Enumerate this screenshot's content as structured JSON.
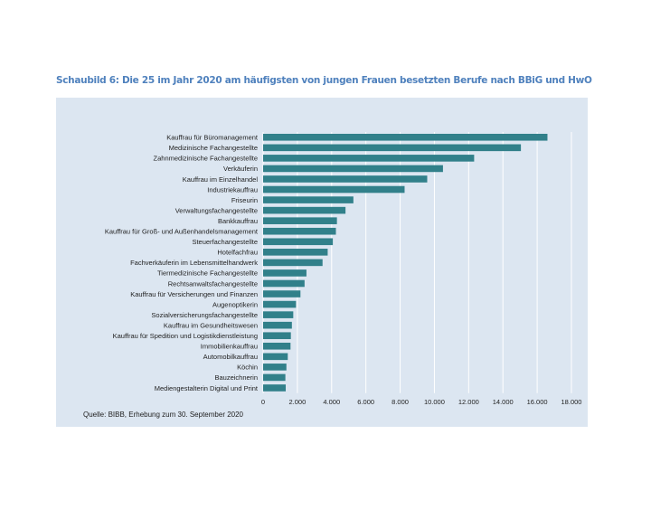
{
  "chart_data": {
    "type": "bar",
    "orientation": "horizontal",
    "title": "Schaubild 6: Die 25 im Jahr 2020 am häufigsten von jungen Frauen besetzten Berufe nach BBiG und HwO",
    "source": "Quelle: BIBB, Erhebung zum 30. September 2020",
    "categories": [
      "Kauffrau für Büromanagement",
      "Medizinische Fachangestellte",
      "Zahnmedizinische Fachangestellte",
      "Verkäuferin",
      "Kauffrau im Einzelhandel",
      "Industriekauffrau",
      "Friseurin",
      "Verwaltungsfachangestellte",
      "Bankkauffrau",
      "Kauffrau für Groß- und Außenhandelsmanagement",
      "Steuerfachangestellte",
      "Hotelfachfrau",
      "Fachverkäuferin im Lebensmittelhandwerk",
      "Tiermedizinische Fachangestellte",
      "Rechtsanwaltsfachangestellte",
      "Kauffrau für Versicherungen und Finanzen",
      "Augenoptikerin",
      "Sozialversicherungsfachangestellte",
      "Kauffrau im Gesundheitswesen",
      "Kauffrau für Spedition und Logistikdienstleistung",
      "Immobilienkauffrau",
      "Automobilkauffrau",
      "Köchin",
      "Bauzeichnerin",
      "Mediengestalterin Digital und Print"
    ],
    "values": [
      16600,
      15050,
      12320,
      10500,
      9580,
      8260,
      5270,
      4810,
      4310,
      4250,
      4070,
      3770,
      3470,
      2530,
      2420,
      2180,
      1920,
      1760,
      1680,
      1620,
      1600,
      1440,
      1360,
      1300,
      1320
    ],
    "xlim": [
      0,
      18000
    ],
    "xticks": [
      "0",
      "2.000",
      "4.000",
      "6.000",
      "8.000",
      "10.000",
      "12.000",
      "14.000",
      "16.000",
      "18.000"
    ],
    "grid": true,
    "bar_color": "#31808a"
  }
}
